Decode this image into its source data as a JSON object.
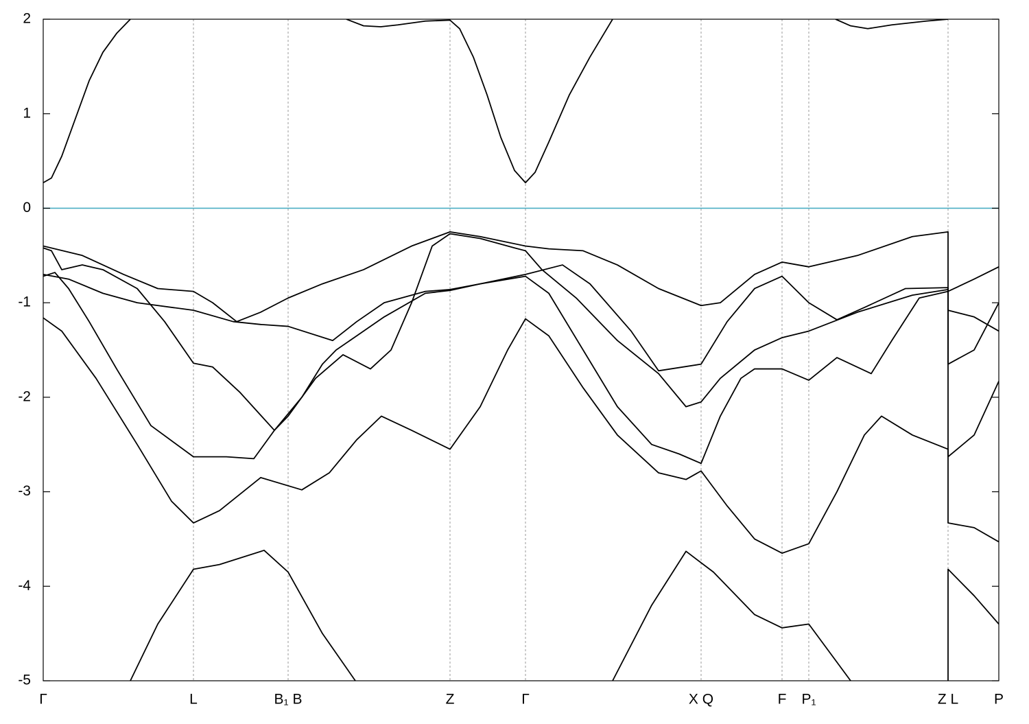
{
  "chart_data": {
    "type": "line",
    "xlim": [
      0,
      1393
    ],
    "ylim": [
      -5,
      2
    ],
    "yticks": [
      -5,
      -4,
      -3,
      -2,
      -1,
      0,
      1,
      2
    ],
    "xticks": [
      {
        "value": 0,
        "label": "Γ"
      },
      {
        "value": 219,
        "label": "L"
      },
      {
        "value": 357,
        "label": "B₁ B"
      },
      {
        "value": 593,
        "label": "Z"
      },
      {
        "value": 703,
        "label": "Γ"
      },
      {
        "value": 959,
        "label": "X Q"
      },
      {
        "value": 1077,
        "label": "F"
      },
      {
        "value": 1116,
        "label": "P₁"
      },
      {
        "value": 1319,
        "label": "Z L"
      },
      {
        "value": 1393,
        "label": "P"
      }
    ],
    "grid": true,
    "hline": {
      "value": 0,
      "color": "#4aaec4"
    },
    "line_color": "#000000",
    "series": [
      {
        "x": [
          0,
          12,
          27,
          47,
          67,
          87,
          107,
          127,
          null,
          442,
          467,
          492,
          517,
          557,
          593,
          607,
          627,
          647,
          667,
          687,
          703,
          717,
          737,
          767,
          797,
          830,
          null,
          1155,
          1177,
          1202,
          1237,
          1287,
          1319
        ],
        "values": [
          0.27,
          0.32,
          0.55,
          0.95,
          1.35,
          1.65,
          1.85,
          2.0,
          null,
          2.0,
          1.93,
          1.92,
          1.94,
          1.98,
          1.99,
          1.9,
          1.6,
          1.2,
          0.75,
          0.4,
          0.27,
          0.38,
          0.7,
          1.2,
          1.6,
          2.0,
          null,
          2.0,
          1.93,
          1.9,
          1.94,
          1.98,
          2.0
        ]
      },
      {
        "x": [
          0,
          57,
          117,
          167,
          219,
          247,
          282,
          317,
          357,
          407,
          467,
          537,
          593,
          637,
          703,
          737,
          787,
          837,
          897,
          959,
          987,
          1037,
          1077,
          1116,
          1187,
          1267,
          1319,
          1319,
          1357,
          1393
        ],
        "values": [
          -0.4,
          -0.5,
          -0.7,
          -0.85,
          -0.88,
          -1.0,
          -1.2,
          -1.1,
          -0.95,
          -0.8,
          -0.65,
          -0.4,
          -0.25,
          -0.3,
          -0.4,
          -0.43,
          -0.45,
          -0.6,
          -0.85,
          -1.03,
          -1.0,
          -0.7,
          -0.57,
          -0.62,
          -0.5,
          -0.3,
          -0.25,
          -0.88,
          -0.75,
          -0.62
        ]
      },
      {
        "x": [
          0,
          12,
          27,
          57,
          87,
          137,
          177,
          219,
          247,
          287,
          337,
          357,
          397,
          437,
          477,
          507,
          537,
          567,
          593,
          637,
          687,
          703,
          727,
          777,
          837,
          897,
          937,
          959,
          987,
          1037,
          1077,
          1116,
          1187,
          1267,
          1319,
          1319,
          1357,
          1393
        ],
        "values": [
          -0.42,
          -0.45,
          -0.65,
          -0.6,
          -0.65,
          -0.85,
          -1.2,
          -1.64,
          -1.68,
          -1.95,
          -2.35,
          -2.2,
          -1.8,
          -1.55,
          -1.7,
          -1.5,
          -1.0,
          -0.4,
          -0.27,
          -0.32,
          -0.42,
          -0.45,
          -0.65,
          -0.95,
          -1.4,
          -1.75,
          -2.1,
          -2.05,
          -1.8,
          -1.5,
          -1.37,
          -1.3,
          -1.1,
          -0.92,
          -0.86,
          -1.65,
          -1.5,
          -1.0
        ]
      },
      {
        "x": [
          0,
          37,
          87,
          137,
          219,
          277,
          317,
          357,
          422,
          457,
          497,
          557,
          593,
          637,
          703,
          757,
          797,
          857,
          897,
          959,
          997,
          1037,
          1077,
          1116,
          1157,
          1197,
          1257,
          1319,
          1319,
          1357,
          1393
        ],
        "values": [
          -0.7,
          -0.75,
          -0.9,
          -1.0,
          -1.08,
          -1.2,
          -1.23,
          -1.25,
          -1.4,
          -1.2,
          -1.0,
          -0.88,
          -0.86,
          -0.8,
          -0.7,
          -0.6,
          -0.8,
          -1.3,
          -1.72,
          -1.65,
          -1.2,
          -0.85,
          -0.72,
          -1.0,
          -1.18,
          -1.05,
          -0.85,
          -0.84,
          -1.08,
          -1.15,
          -1.3
        ]
      },
      {
        "x": [
          0,
          17,
          37,
          67,
          107,
          157,
          219,
          267,
          307,
          337,
          377,
          407,
          427,
          457,
          497,
          557,
          593,
          637,
          703,
          737,
          787,
          837,
          887,
          927,
          959,
          987,
          1017,
          1037,
          1077,
          1116,
          1157,
          1207,
          1237,
          1277,
          1319,
          1319,
          1357,
          1393
        ],
        "values": [
          -0.72,
          -0.68,
          -0.85,
          -1.2,
          -1.7,
          -2.3,
          -2.63,
          -2.63,
          -2.65,
          -2.35,
          -2.0,
          -1.65,
          -1.5,
          -1.35,
          -1.15,
          -0.9,
          -0.87,
          -0.8,
          -0.72,
          -0.9,
          -1.5,
          -2.1,
          -2.5,
          -2.6,
          -2.7,
          -2.2,
          -1.8,
          -1.7,
          -1.7,
          -1.82,
          -1.58,
          -1.75,
          -1.4,
          -0.95,
          -0.88,
          -2.63,
          -2.4,
          -1.83
        ]
      },
      {
        "x": [
          0,
          27,
          77,
          137,
          187,
          219,
          257,
          317,
          377,
          417,
          457,
          493,
          537,
          593,
          637,
          677,
          703,
          737,
          787,
          837,
          897,
          937,
          959,
          997,
          1037,
          1077,
          1116,
          1157,
          1197,
          1222,
          1267,
          1319,
          1319,
          1357,
          1393
        ],
        "values": [
          -1.16,
          -1.3,
          -1.8,
          -2.5,
          -3.1,
          -3.33,
          -3.2,
          -2.85,
          -2.98,
          -2.8,
          -2.45,
          -2.2,
          -2.35,
          -2.55,
          -2.1,
          -1.5,
          -1.17,
          -1.35,
          -1.9,
          -2.4,
          -2.8,
          -2.87,
          -2.78,
          -3.15,
          -3.5,
          -3.65,
          -3.55,
          -3.0,
          -2.4,
          -2.2,
          -2.4,
          -2.55,
          -3.33,
          -3.38,
          -3.53
        ]
      },
      {
        "x": [
          127,
          167,
          219,
          257,
          322,
          357,
          407,
          455,
          null,
          830,
          887,
          937,
          977,
          1037,
          1077,
          1116,
          1177,
          null,
          1319,
          1319,
          1357,
          1393
        ],
        "values": [
          -5.0,
          -4.4,
          -3.82,
          -3.77,
          -3.62,
          -3.85,
          -4.5,
          -5.0,
          null,
          -5.0,
          -4.2,
          -3.63,
          -3.85,
          -4.3,
          -4.44,
          -4.4,
          -5.0,
          null,
          -5.0,
          -3.82,
          -4.1,
          -4.4
        ]
      }
    ]
  }
}
